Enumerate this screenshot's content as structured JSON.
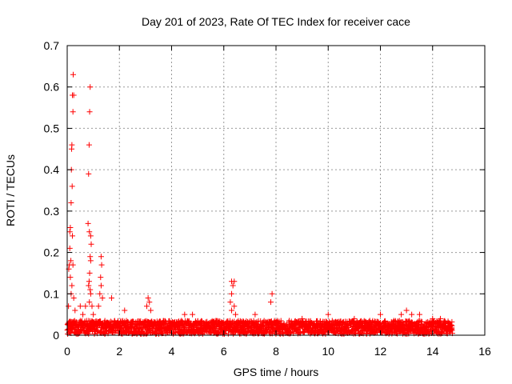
{
  "chart_data": {
    "type": "scatter",
    "title": "Day 201 of 2023, Rate Of TEC Index for receiver cace",
    "xlabel": "GPS time / hours",
    "ylabel": "ROTI / TECUs",
    "xlim": [
      0,
      16
    ],
    "ylim": [
      0,
      0.7
    ],
    "x_ticks": [
      "0",
      "2",
      "4",
      "6",
      "8",
      "10",
      "12",
      "14",
      "16"
    ],
    "y_ticks": [
      "0",
      "0.1",
      "0.2",
      "0.3",
      "0.4",
      "0.5",
      "0.6",
      "0.7"
    ],
    "grid": true,
    "marker": "+",
    "point_color": "#ff0000",
    "series": [
      {
        "points": [
          [
            0.05,
            0.07
          ],
          [
            0.06,
            0.16
          ],
          [
            0.08,
            0.17
          ],
          [
            0.1,
            0.25
          ],
          [
            0.1,
            0.21
          ],
          [
            0.12,
            0.26
          ],
          [
            0.14,
            0.18
          ],
          [
            0.15,
            0.32
          ],
          [
            0.16,
            0.4
          ],
          [
            0.17,
            0.45
          ],
          [
            0.18,
            0.46
          ],
          [
            0.19,
            0.36
          ],
          [
            0.2,
            0.58
          ],
          [
            0.22,
            0.54
          ],
          [
            0.23,
            0.63
          ],
          [
            0.25,
            0.58
          ],
          [
            0.2,
            0.24
          ],
          [
            0.22,
            0.17
          ],
          [
            0.18,
            0.12
          ],
          [
            0.15,
            0.1
          ],
          [
            0.12,
            0.14
          ],
          [
            0.25,
            0.09
          ],
          [
            0.3,
            0.06
          ],
          [
            0.5,
            0.07
          ],
          [
            0.6,
            0.05
          ],
          [
            0.7,
            0.07
          ],
          [
            0.8,
            0.27
          ],
          [
            0.82,
            0.39
          ],
          [
            0.84,
            0.46
          ],
          [
            0.86,
            0.54
          ],
          [
            0.88,
            0.6
          ],
          [
            0.85,
            0.25
          ],
          [
            0.9,
            0.24
          ],
          [
            0.92,
            0.22
          ],
          [
            0.88,
            0.19
          ],
          [
            0.9,
            0.18
          ],
          [
            0.86,
            0.15
          ],
          [
            0.84,
            0.13
          ],
          [
            0.82,
            0.12
          ],
          [
            0.88,
            0.11
          ],
          [
            0.9,
            0.1
          ],
          [
            0.85,
            0.08
          ],
          [
            0.95,
            0.07
          ],
          [
            1.0,
            0.05
          ],
          [
            1.2,
            0.07
          ],
          [
            1.3,
            0.19
          ],
          [
            1.32,
            0.17
          ],
          [
            1.28,
            0.14
          ],
          [
            1.3,
            0.12
          ],
          [
            1.25,
            0.1
          ],
          [
            1.35,
            0.09
          ],
          [
            1.7,
            0.09
          ],
          [
            2.2,
            0.06
          ],
          [
            3.1,
            0.09
          ],
          [
            3.15,
            0.08
          ],
          [
            3.05,
            0.07
          ],
          [
            3.2,
            0.06
          ],
          [
            4.5,
            0.05
          ],
          [
            4.8,
            0.05
          ],
          [
            6.3,
            0.13
          ],
          [
            6.35,
            0.12
          ],
          [
            6.4,
            0.13
          ],
          [
            6.3,
            0.1
          ],
          [
            6.25,
            0.08
          ],
          [
            6.4,
            0.07
          ],
          [
            6.3,
            0.06
          ],
          [
            6.45,
            0.05
          ],
          [
            7.2,
            0.05
          ],
          [
            7.85,
            0.1
          ],
          [
            7.8,
            0.08
          ],
          [
            9.0,
            0.04
          ],
          [
            10.0,
            0.05
          ],
          [
            11.0,
            0.04
          ],
          [
            11.5,
            0.03
          ],
          [
            12.0,
            0.05
          ],
          [
            12.8,
            0.05
          ],
          [
            13.0,
            0.06
          ],
          [
            13.2,
            0.05
          ],
          [
            13.5,
            0.05
          ],
          [
            14.0,
            0.04
          ],
          [
            14.3,
            0.04
          ],
          [
            14.6,
            0.03
          ]
        ]
      }
    ],
    "dense_band": {
      "x_range": [
        0,
        14.75
      ],
      "y_range": [
        0.003,
        0.035
      ]
    }
  }
}
